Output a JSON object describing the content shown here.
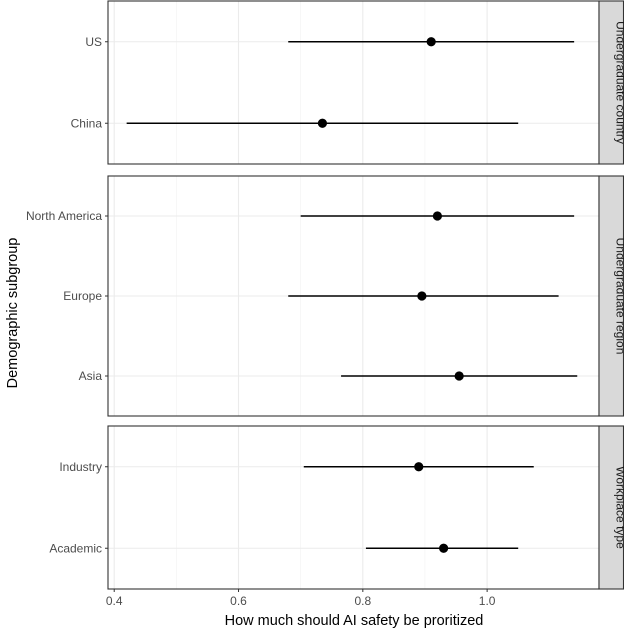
{
  "chart_data": {
    "type": "forest",
    "xlabel": "How much should AI safety be proritized",
    "ylabel": "Demographic subgroup",
    "xlim": [
      0.39,
      1.18
    ],
    "x_ticks": [
      0.4,
      0.6,
      0.8,
      1.0
    ],
    "x_tick_labels": [
      "0.4",
      "0.6",
      "0.8",
      "1.0"
    ],
    "grid": true,
    "panels": [
      {
        "facet_label": "Undergraduate country",
        "rows": [
          {
            "label": "US",
            "estimate": 0.91,
            "ci_low": 0.68,
            "ci_high": 1.14
          },
          {
            "label": "China",
            "estimate": 0.735,
            "ci_low": 0.42,
            "ci_high": 1.05
          }
        ]
      },
      {
        "facet_label": "Undergraduate region",
        "rows": [
          {
            "label": "North America",
            "estimate": 0.92,
            "ci_low": 0.7,
            "ci_high": 1.14
          },
          {
            "label": "Europe",
            "estimate": 0.895,
            "ci_low": 0.68,
            "ci_high": 1.115
          },
          {
            "label": "Asia",
            "estimate": 0.955,
            "ci_low": 0.765,
            "ci_high": 1.145
          }
        ]
      },
      {
        "facet_label": "Workplace type",
        "rows": [
          {
            "label": "Industry",
            "estimate": 0.89,
            "ci_low": 0.705,
            "ci_high": 1.075
          },
          {
            "label": "Academic",
            "estimate": 0.93,
            "ci_low": 0.805,
            "ci_high": 1.05
          }
        ]
      }
    ]
  }
}
